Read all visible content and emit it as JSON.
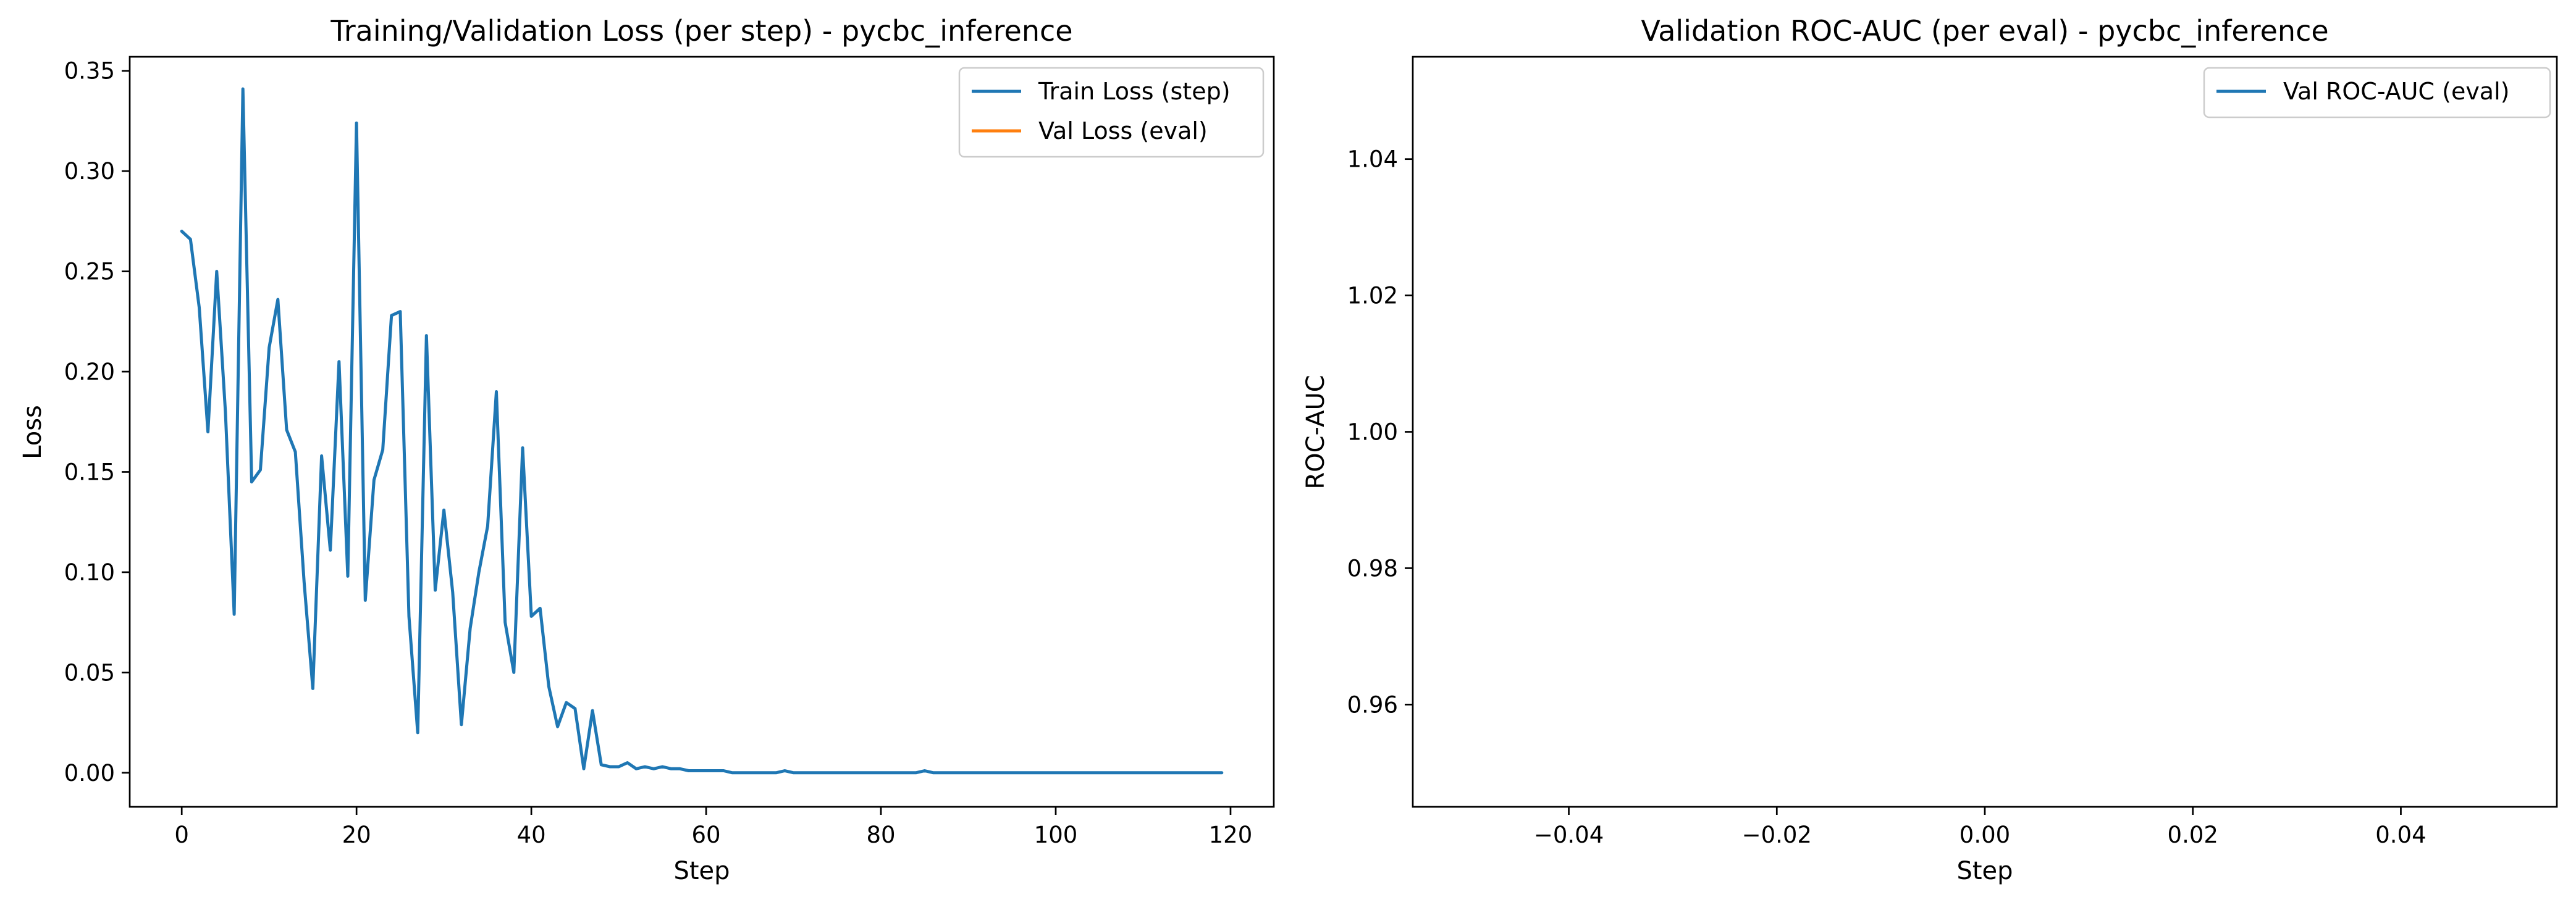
{
  "chart_data": [
    {
      "type": "line",
      "title": "Training/Validation Loss (per step) - pycbc_inference",
      "xlabel": "Step",
      "ylabel": "Loss",
      "xlim": [
        -5.95,
        124.95
      ],
      "ylim": [
        -0.017,
        0.357
      ],
      "xticks": [
        0,
        20,
        40,
        60,
        80,
        100,
        120
      ],
      "yticks": [
        0.0,
        0.05,
        0.1,
        0.15,
        0.2,
        0.25,
        0.3,
        0.35
      ],
      "xtick_labels": [
        "0",
        "20",
        "40",
        "60",
        "80",
        "100",
        "120"
      ],
      "ytick_labels": [
        "0.00",
        "0.05",
        "0.10",
        "0.15",
        "0.20",
        "0.25",
        "0.30",
        "0.35"
      ],
      "legend": "top-right",
      "grid": false,
      "series": [
        {
          "name": "Train Loss (step)",
          "color": "#1f77b4",
          "x": [
            0,
            1,
            2,
            3,
            4,
            5,
            6,
            7,
            8,
            9,
            10,
            11,
            12,
            13,
            14,
            15,
            16,
            17,
            18,
            19,
            20,
            21,
            22,
            23,
            24,
            25,
            26,
            27,
            28,
            29,
            30,
            31,
            32,
            33,
            34,
            35,
            36,
            37,
            38,
            39,
            40,
            41,
            42,
            43,
            44,
            45,
            46,
            47,
            48,
            49,
            50,
            51,
            52,
            53,
            54,
            55,
            56,
            57,
            58,
            59,
            60,
            61,
            62,
            63,
            64,
            65,
            66,
            67,
            68,
            69,
            70,
            71,
            72,
            73,
            74,
            75,
            76,
            77,
            78,
            79,
            80,
            81,
            82,
            83,
            84,
            85,
            86,
            87,
            88,
            89,
            90,
            91,
            92,
            93,
            94,
            95,
            96,
            97,
            98,
            99,
            100,
            101,
            102,
            103,
            104,
            105,
            106,
            107,
            108,
            109,
            110,
            111,
            112,
            113,
            114,
            115,
            116,
            117,
            118,
            119
          ],
          "y": [
            0.27,
            0.266,
            0.232,
            0.17,
            0.25,
            0.18,
            0.079,
            0.341,
            0.145,
            0.151,
            0.212,
            0.236,
            0.171,
            0.16,
            0.095,
            0.042,
            0.158,
            0.111,
            0.205,
            0.098,
            0.324,
            0.086,
            0.146,
            0.161,
            0.228,
            0.23,
            0.078,
            0.02,
            0.218,
            0.091,
            0.131,
            0.09,
            0.024,
            0.072,
            0.1,
            0.123,
            0.19,
            0.075,
            0.05,
            0.162,
            0.078,
            0.082,
            0.043,
            0.023,
            0.035,
            0.032,
            0.002,
            0.031,
            0.004,
            0.003,
            0.003,
            0.005,
            0.002,
            0.003,
            0.002,
            0.003,
            0.002,
            0.002,
            0.001,
            0.001,
            0.001,
            0.001,
            0.001,
            0.0,
            0.0,
            0.0,
            0.0,
            0.0,
            0.0,
            0.001,
            0.0,
            0.0,
            0.0,
            0.0,
            0.0,
            0.0,
            0.0,
            0.0,
            0.0,
            0.0,
            0.0,
            0.0,
            0.0,
            0.0,
            0.0,
            0.001,
            0.0,
            0.0,
            0.0,
            0.0,
            0.0,
            0.0,
            0.0,
            0.0,
            0.0,
            0.0,
            0.0,
            0.0,
            0.0,
            0.0,
            0.0,
            0.0,
            0.0,
            0.0,
            0.0,
            0.0,
            0.0,
            0.0,
            0.0,
            0.0,
            0.0,
            0.0,
            0.0,
            0.0,
            0.0,
            0.0,
            0.0,
            0.0,
            0.0,
            0.0
          ]
        },
        {
          "name": "Val Loss (eval)",
          "color": "#ff7f0e",
          "x": [],
          "y": []
        }
      ]
    },
    {
      "type": "line",
      "title": "Validation ROC-AUC (per eval) - pycbc_inference",
      "xlabel": "Step",
      "ylabel": "ROC-AUC",
      "xlim": [
        -0.055,
        0.055
      ],
      "ylim": [
        0.945,
        1.055
      ],
      "xticks": [
        -0.04,
        -0.02,
        0.0,
        0.02,
        0.04
      ],
      "yticks": [
        0.96,
        0.98,
        1.0,
        1.02,
        1.04
      ],
      "xtick_labels": [
        "−0.04",
        "−0.02",
        "0.00",
        "0.02",
        "0.04"
      ],
      "ytick_labels": [
        "0.96",
        "0.98",
        "1.00",
        "1.02",
        "1.04"
      ],
      "legend": "top-right",
      "grid": false,
      "series": [
        {
          "name": "Val ROC-AUC (eval)",
          "color": "#1f77b4",
          "x": [],
          "y": []
        }
      ]
    }
  ]
}
